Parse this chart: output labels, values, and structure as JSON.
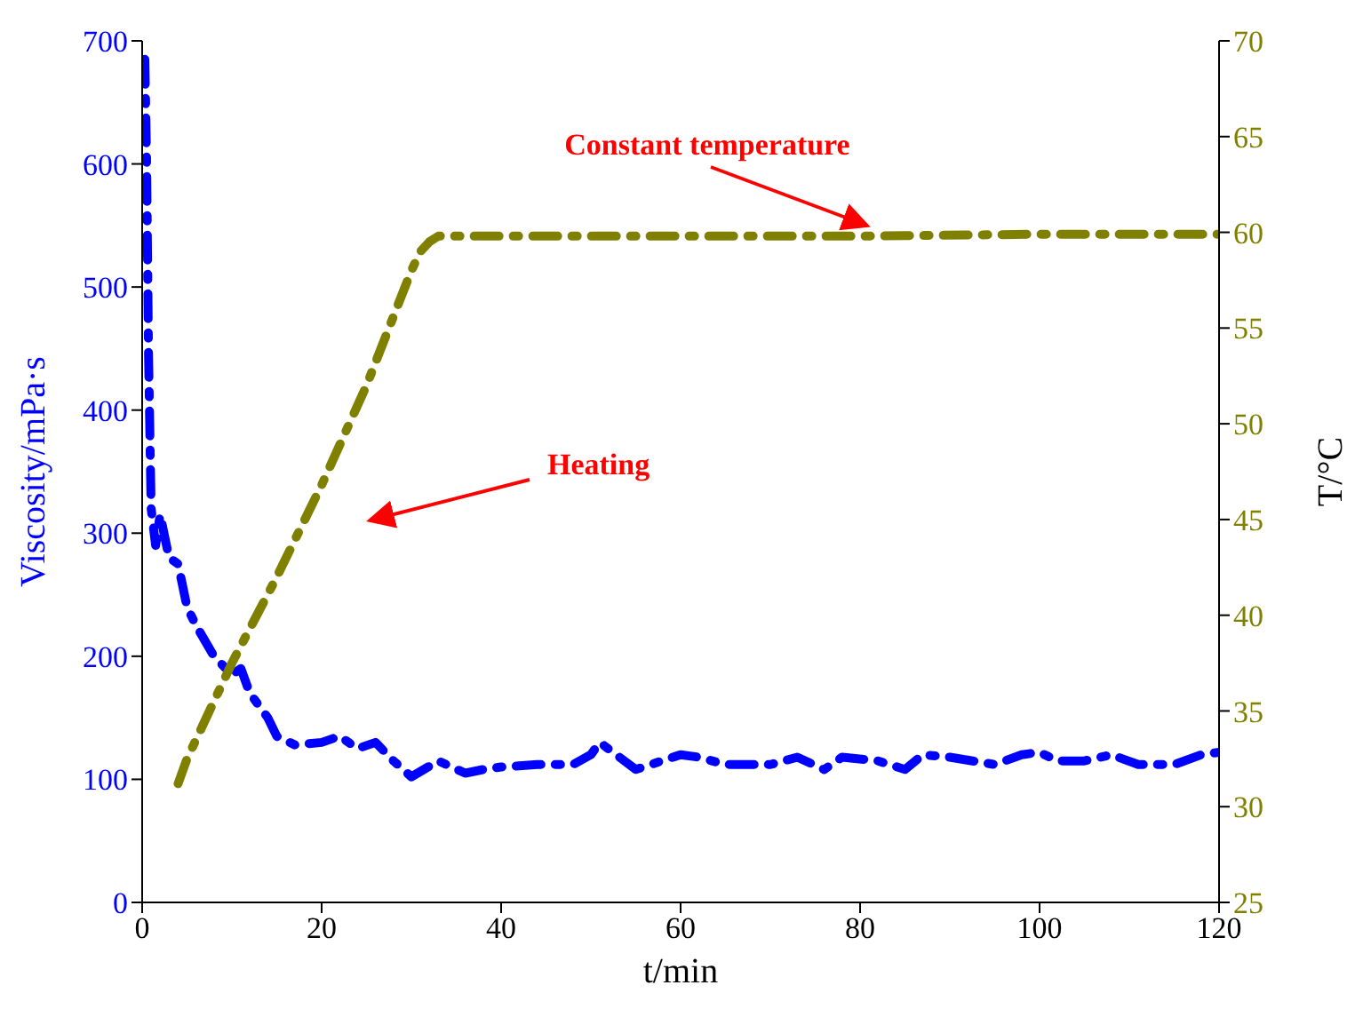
{
  "chart_data": {
    "type": "line",
    "xlabel": "t/min",
    "ylabel": "Viscosity/mPa·s",
    "y2label": "T/°C",
    "xlim": [
      0,
      120
    ],
    "xticks": [
      0,
      20,
      40,
      60,
      80,
      100,
      120
    ],
    "ylim": [
      0,
      700
    ],
    "yticks": [
      0,
      100,
      200,
      300,
      400,
      500,
      600,
      700
    ],
    "y2lim": [
      25,
      70
    ],
    "y2ticks": [
      25,
      30,
      35,
      40,
      45,
      50,
      55,
      60,
      65,
      70
    ],
    "line_style": "dashed",
    "annotations": [
      "Heating",
      "Constant temperature"
    ],
    "series": [
      {
        "color": "#0000ff",
        "x": [
          0.3,
          0.5,
          0.7,
          1,
          1.5,
          2,
          3,
          4,
          5,
          6,
          8,
          10,
          11,
          12,
          14,
          15,
          17,
          20,
          22,
          24,
          26,
          28,
          30,
          33,
          36,
          38,
          40,
          44,
          48,
          50,
          51,
          55,
          60,
          62,
          65,
          70,
          73,
          76,
          78,
          82,
          85,
          87,
          90,
          95,
          98,
          100,
          102,
          105,
          108,
          111,
          115,
          118,
          120
        ],
        "values": [
          685,
          600,
          450,
          320,
          290,
          315,
          280,
          275,
          240,
          225,
          200,
          185,
          190,
          170,
          150,
          135,
          128,
          130,
          135,
          125,
          130,
          115,
          102,
          115,
          105,
          108,
          110,
          112,
          112,
          120,
          130,
          108,
          120,
          118,
          112,
          112,
          118,
          108,
          118,
          115,
          108,
          120,
          118,
          112,
          120,
          122,
          115,
          115,
          120,
          112,
          112,
          120,
          122
        ]
      },
      {
        "color": "#808000",
        "axis": "y2",
        "x": [
          4,
          5,
          10,
          15,
          20,
          25,
          30,
          31,
          32,
          33,
          40,
          60,
          80,
          100,
          120
        ],
        "values": [
          31.2,
          32.5,
          37.5,
          42,
          46.8,
          52,
          58,
          59,
          59.5,
          59.8,
          59.8,
          59.8,
          59.8,
          59.9,
          59.9
        ]
      }
    ]
  }
}
